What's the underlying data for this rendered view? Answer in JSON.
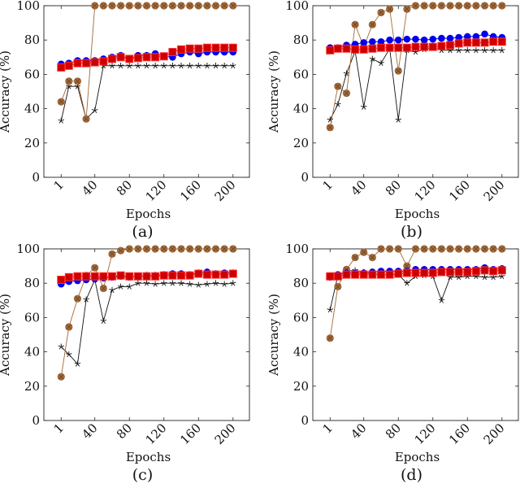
{
  "chart_data": {
    "type": "line",
    "layout": "2x2 grid",
    "x": [
      1,
      10,
      20,
      30,
      40,
      50,
      60,
      70,
      80,
      90,
      100,
      110,
      120,
      130,
      140,
      150,
      160,
      170,
      180,
      190,
      200
    ],
    "xticks": [
      1,
      40,
      80,
      120,
      160,
      200
    ],
    "yticks": [
      0,
      20,
      40,
      60,
      80,
      100
    ],
    "xlim": [
      -19,
      219
    ],
    "ylim": [
      0,
      100
    ],
    "xlabel": "Epochs",
    "ylabel": "Accuracy (%)",
    "colors": {
      "blue": "#0000ee",
      "red": "#dd0000",
      "brown": "#a0693a",
      "star": "#111111"
    },
    "panels": [
      {
        "caption": "(a)",
        "series": [
          {
            "name": "blue-circle",
            "values": [
              66,
              66.5,
              68,
              68,
              68,
              69,
              70,
              71,
              69,
              71,
              71,
              72,
              70.5,
              70,
              72,
              73,
              72,
              73,
              73,
              73,
              73
            ]
          },
          {
            "name": "red-square",
            "values": [
              64,
              65,
              66.5,
              66.5,
              67,
              67.5,
              69,
              70,
              69,
              69.5,
              70,
              70,
              70.5,
              73,
              74.5,
              75,
              75,
              75.5,
              75.5,
              75.5,
              75.5
            ]
          },
          {
            "name": "brown-circle",
            "values": [
              44,
              56,
              56,
              34,
              100,
              100,
              100,
              100,
              100,
              100,
              100,
              100,
              100,
              100,
              100,
              100,
              100,
              100,
              100,
              100,
              100
            ]
          },
          {
            "name": "black-star",
            "values": [
              33,
              53,
              53,
              34,
              39,
              65,
              65,
              65,
              65,
              65,
              65,
              65,
              65,
              65,
              65,
              65,
              65,
              65,
              65,
              65,
              65
            ]
          }
        ]
      },
      {
        "caption": "(b)",
        "series": [
          {
            "name": "blue-circle",
            "values": [
              75.5,
              75.5,
              77,
              77.5,
              78.5,
              79,
              79,
              80,
              80,
              80.5,
              80.5,
              80,
              80.5,
              81,
              81,
              81.5,
              82,
              82,
              83.5,
              82,
              81.5
            ]
          },
          {
            "name": "red-square",
            "values": [
              74,
              75,
              75,
              74.5,
              74.5,
              75,
              75.5,
              75.5,
              75.5,
              75.5,
              76,
              76,
              76,
              76.5,
              77,
              78,
              78.5,
              78.5,
              78.5,
              79,
              79
            ]
          },
          {
            "name": "brown-circle",
            "values": [
              29,
              53,
              49,
              89,
              76,
              89,
              96,
              98,
              62,
              98,
              100,
              100,
              100,
              100,
              100,
              100,
              100,
              100,
              100,
              100,
              100
            ]
          },
          {
            "name": "black-star",
            "values": [
              33.5,
              42.5,
              60.5,
              73.5,
              41,
              69,
              66.5,
              75,
              33.5,
              74,
              73,
              74.5,
              75.5,
              74,
              74,
              74,
              74,
              74,
              74,
              74,
              74
            ]
          }
        ]
      },
      {
        "caption": "(c)",
        "series": [
          {
            "name": "blue-circle",
            "values": [
              79.5,
              81,
              81.5,
              82,
              82.5,
              83,
              83.5,
              84,
              83.5,
              84,
              84.5,
              84.5,
              85,
              85.5,
              85.5,
              85,
              86,
              86.5,
              85.5,
              86,
              86
            ]
          },
          {
            "name": "red-square",
            "values": [
              82,
              83.5,
              84,
              84,
              84,
              84,
              84,
              84.5,
              84,
              84,
              84,
              84,
              84.5,
              84.5,
              84.5,
              84.5,
              85.5,
              85,
              85,
              85,
              85.5
            ]
          },
          {
            "name": "brown-circle",
            "values": [
              25.5,
              54.5,
              71,
              84.5,
              89,
              77,
              97,
              99,
              100,
              100,
              100,
              100,
              100,
              100,
              100,
              100,
              100,
              100,
              100,
              100,
              100
            ]
          },
          {
            "name": "black-star",
            "values": [
              43,
              38.5,
              33,
              70.5,
              82,
              58,
              76,
              78,
              78,
              80,
              80,
              79.5,
              80,
              80,
              80,
              79.5,
              79,
              79.5,
              80,
              79.5,
              80
            ]
          }
        ]
      },
      {
        "caption": "(d)",
        "series": [
          {
            "name": "blue-circle",
            "values": [
              83.5,
              85,
              86,
              86,
              86,
              86.5,
              87,
              87,
              87,
              87,
              88,
              88,
              88,
              88,
              88,
              88,
              88,
              88,
              89,
              88,
              88.5
            ]
          },
          {
            "name": "red-square",
            "values": [
              84,
              84,
              85,
              85,
              85,
              85,
              85,
              85,
              85.5,
              86,
              86,
              86,
              86,
              86.5,
              86.5,
              86.5,
              86.5,
              87,
              87.5,
              87,
              87.5
            ]
          },
          {
            "name": "brown-circle",
            "values": [
              48,
              78,
              88,
              95,
              98,
              95,
              100,
              100,
              100,
              90,
              100,
              100,
              100,
              100,
              100,
              100,
              100,
              100,
              100,
              100,
              100
            ]
          },
          {
            "name": "black-star",
            "values": [
              64.5,
              84.5,
              87,
              87.5,
              86.5,
              85.5,
              85,
              85,
              85,
              80,
              84,
              84.5,
              84,
              70,
              83.5,
              83.5,
              84,
              84,
              83.5,
              83.5,
              84
            ]
          }
        ]
      }
    ]
  }
}
